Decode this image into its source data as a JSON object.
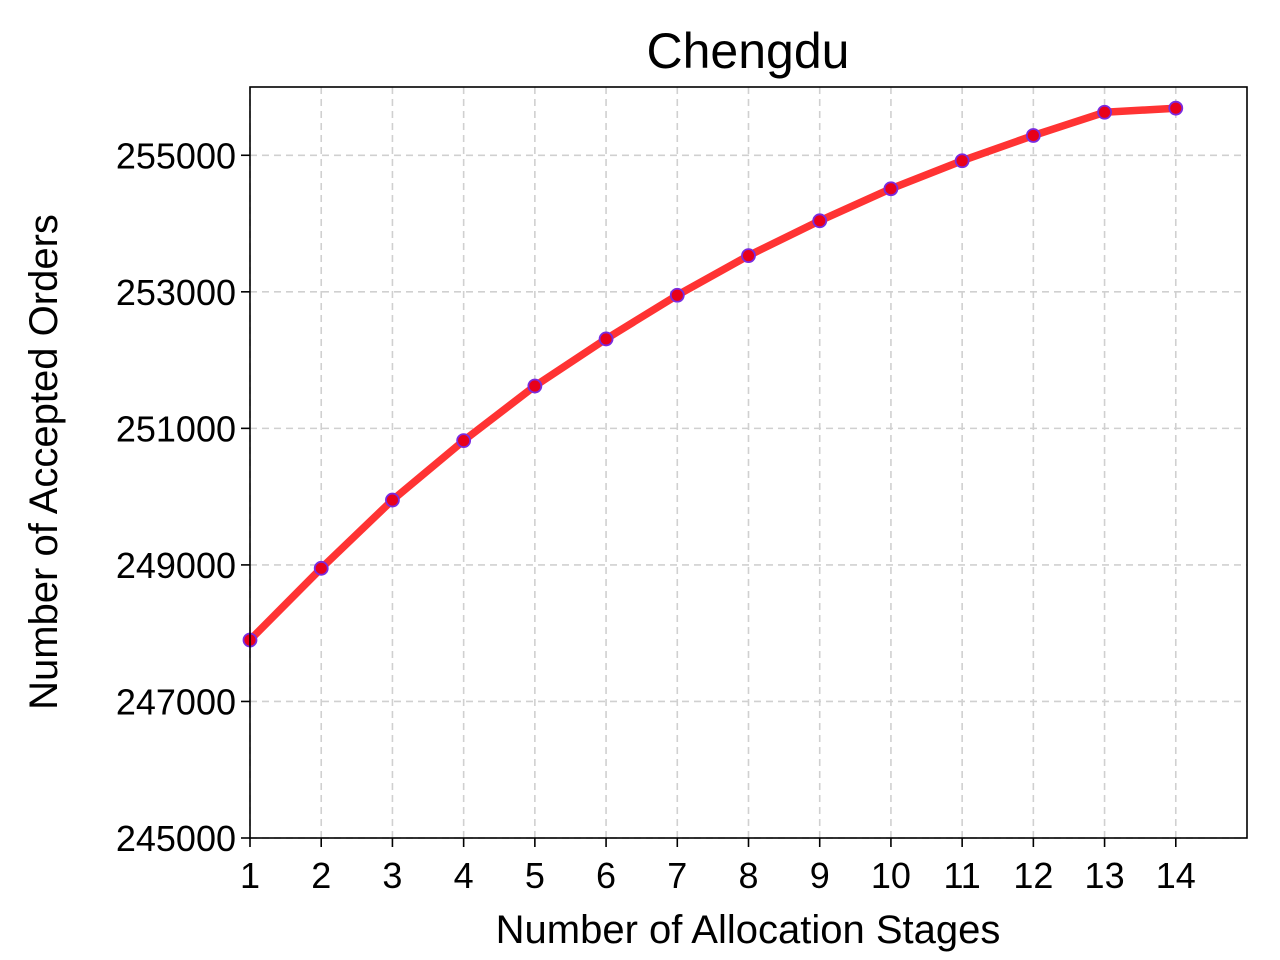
{
  "chart_data": {
    "type": "line",
    "title": "Chengdu",
    "xlabel": "Number of Allocation Stages",
    "ylabel": "Number of Accepted Orders",
    "x": [
      1,
      2,
      3,
      4,
      5,
      6,
      7,
      8,
      9,
      10,
      11,
      12,
      13,
      14
    ],
    "series": [
      {
        "values": [
          247900,
          248950,
          249950,
          250820,
          251620,
          252310,
          252950,
          253530,
          254040,
          254510,
          254920,
          255290,
          255630,
          255690
        ]
      }
    ],
    "xlim": [
      1,
      15
    ],
    "ylim": [
      245000,
      256000
    ],
    "xticks": [
      "1",
      "2",
      "3",
      "4",
      "5",
      "6",
      "7",
      "8",
      "9",
      "10",
      "11",
      "12",
      "13",
      "14"
    ],
    "yticks": [
      "245000",
      "247000",
      "249000",
      "251000",
      "253000",
      "255000"
    ],
    "grid": true,
    "legend": "none",
    "colors": {
      "line": "#ff3333",
      "marker_fill": "#e8001a",
      "marker_edge": "#7a2be0",
      "grid": "#d0d0d0"
    }
  }
}
